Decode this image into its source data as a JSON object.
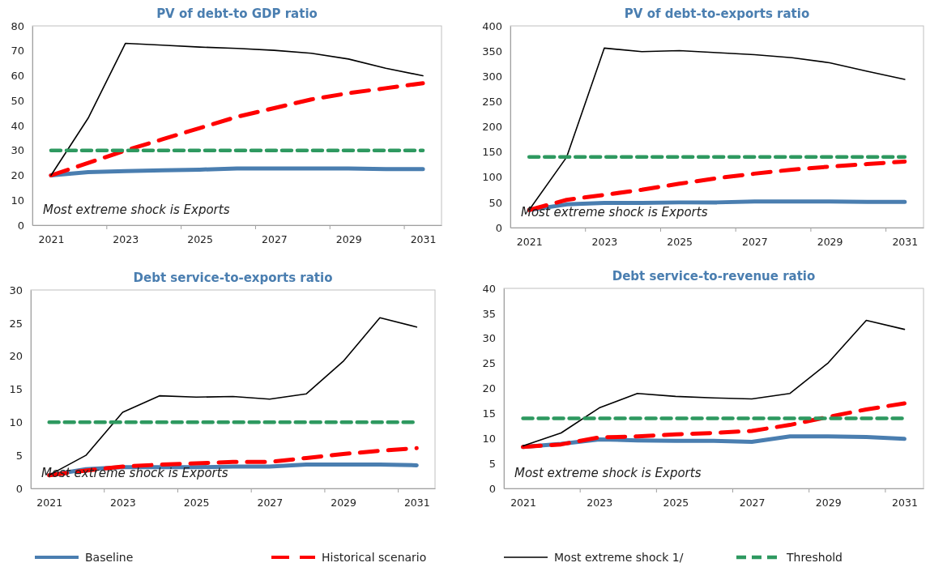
{
  "chart_data": [
    {
      "type": "line",
      "title": "PV of debt-to GDP ratio",
      "categories": [
        "2021",
        null,
        "2023",
        null,
        "2025",
        null,
        "2027",
        null,
        "2029",
        null,
        "2031"
      ],
      "ylim": [
        0,
        80
      ],
      "yticks": [
        0,
        10,
        20,
        30,
        40,
        50,
        60,
        70,
        80
      ],
      "annotations": [
        "Most extreme shock is Exports"
      ],
      "series": [
        {
          "color": "#4a7eb0",
          "line_style": "solid",
          "values": [
            20,
            21.3,
            21.7,
            22,
            22.3,
            22.8,
            22.8,
            22.8,
            22.8,
            22.5,
            22.5
          ]
        },
        {
          "color": "#ff0000",
          "line_style": "dashed",
          "values": [
            20,
            25,
            30,
            34.5,
            39,
            43.5,
            47,
            50.5,
            53,
            55,
            57
          ]
        },
        {
          "color": "#000000",
          "line_style": "solid",
          "values": [
            20,
            43,
            73,
            72.3,
            71.5,
            71,
            70.2,
            69,
            66.7,
            63,
            60
          ]
        },
        {
          "color": "#2e9960",
          "line_style": "dotted",
          "values": [
            30,
            30,
            30,
            30,
            30,
            30,
            30,
            30,
            30,
            30,
            30
          ]
        }
      ]
    },
    {
      "type": "line",
      "title": "PV of debt-to-exports ratio",
      "categories": [
        "2021",
        null,
        "2023",
        null,
        "2025",
        null,
        "2027",
        null,
        "2029",
        null,
        "2031"
      ],
      "ylim": [
        0,
        400
      ],
      "yticks": [
        0,
        50,
        100,
        150,
        200,
        250,
        300,
        350,
        400
      ],
      "annotations": [
        "Most extreme shock is Exports"
      ],
      "series": [
        {
          "color": "#4a7eb0",
          "line_style": "solid",
          "values": [
            35,
            46,
            49,
            49,
            50,
            50,
            52,
            52,
            52,
            51,
            51
          ]
        },
        {
          "color": "#ff0000",
          "line_style": "dashed",
          "values": [
            35,
            55,
            65,
            75,
            87,
            98,
            107,
            115,
            121,
            126,
            131
          ]
        },
        {
          "color": "#000000",
          "line_style": "solid",
          "values": [
            35,
            140,
            356,
            349,
            351,
            347,
            343,
            337,
            327,
            310,
            294
          ]
        },
        {
          "color": "#2e9960",
          "line_style": "dotted",
          "values": [
            140,
            140,
            140,
            140,
            140,
            140,
            140,
            140,
            140,
            140,
            140
          ]
        }
      ]
    },
    {
      "type": "line",
      "title": "Debt service-to-exports ratio",
      "categories": [
        "2021",
        null,
        "2023",
        null,
        "2025",
        null,
        "2027",
        null,
        "2029",
        null,
        "2031"
      ],
      "ylim": [
        0,
        30
      ],
      "yticks": [
        0,
        5,
        10,
        15,
        20,
        25,
        30
      ],
      "annotations": [
        "Most extreme shock is Exports"
      ],
      "series": [
        {
          "color": "#4a7eb0",
          "line_style": "solid",
          "values": [
            2,
            2.9,
            3.2,
            3.2,
            3.2,
            3.3,
            3.3,
            3.6,
            3.6,
            3.6,
            3.5
          ]
        },
        {
          "color": "#ff0000",
          "line_style": "dashed",
          "values": [
            2,
            2.7,
            3.3,
            3.6,
            3.8,
            4,
            4,
            4.6,
            5.2,
            5.7,
            6.1
          ]
        },
        {
          "color": "#000000",
          "line_style": "solid",
          "values": [
            2,
            5,
            11.5,
            14,
            13.8,
            13.9,
            13.5,
            14.3,
            19.2,
            25.8,
            24.4
          ]
        },
        {
          "color": "#2e9960",
          "line_style": "dotted",
          "values": [
            10,
            10,
            10,
            10,
            10,
            10,
            10,
            10,
            10,
            10,
            10
          ]
        }
      ]
    },
    {
      "type": "line",
      "title": "Debt service-to-revenue ratio",
      "categories": [
        "2021",
        null,
        "2023",
        null,
        "2025",
        null,
        "2027",
        null,
        "2029",
        null,
        "2031"
      ],
      "ylim": [
        0,
        40
      ],
      "yticks": [
        0,
        5,
        10,
        15,
        20,
        25,
        30,
        35,
        40
      ],
      "legend": "bottom",
      "annotations": [
        "Most extreme shock is Exports"
      ],
      "series": [
        {
          "name": "Baseline",
          "color": "#4a7eb0",
          "line_style": "solid",
          "values": [
            8.3,
            8.9,
            9.8,
            9.6,
            9.5,
            9.5,
            9.3,
            10.4,
            10.4,
            10.3,
            9.9
          ]
        },
        {
          "name": "Historical scenario",
          "color": "#ff0000",
          "line_style": "dashed",
          "values": [
            8.3,
            8.8,
            10.2,
            10.4,
            10.8,
            11.1,
            11.5,
            12.7,
            14.3,
            15.8,
            17
          ]
        },
        {
          "name": "Most extreme shock 1/",
          "color": "#000000",
          "line_style": "solid",
          "values": [
            8.5,
            11.1,
            16.1,
            19,
            18.4,
            18.1,
            17.9,
            19,
            25.1,
            33.6,
            31.8
          ]
        },
        {
          "name": "Threshold",
          "color": "#2e9960",
          "line_style": "dotted",
          "values": [
            14,
            14,
            14,
            14,
            14,
            14,
            14,
            14,
            14,
            14,
            14
          ]
        }
      ]
    }
  ]
}
